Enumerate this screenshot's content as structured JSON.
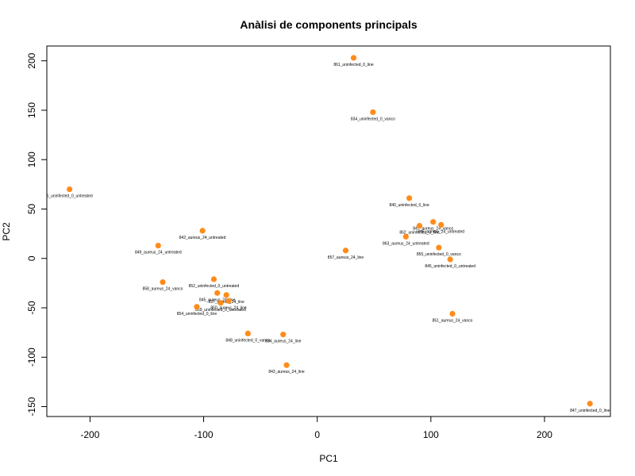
{
  "chart_data": {
    "type": "scatter",
    "title": "Anàlisi de components principals",
    "xlabel": "PC1",
    "ylabel": "PC2",
    "xlim": [
      -238,
      258
    ],
    "ylim": [
      -160,
      215
    ],
    "xticks": [
      -200,
      -100,
      0,
      100,
      200
    ],
    "yticks": [
      -150,
      -100,
      -50,
      0,
      50,
      100,
      150,
      200
    ],
    "point_color": "#ff8c1a",
    "grid": false,
    "legend": "none",
    "points": [
      {
        "label": "861_uninfected_0_line",
        "x": 32,
        "y": 203
      },
      {
        "label": "834_uninfected_0_vanco",
        "x": 49,
        "y": 148
      },
      {
        "label": "6_uninfected_0_untreated",
        "x": -218,
        "y": 70
      },
      {
        "label": "840_uninfected_0_line",
        "x": 81,
        "y": 61
      },
      {
        "label": "847_aureus_24_vanco",
        "x": 102,
        "y": 37
      },
      {
        "label": "862_uninfected_0_line",
        "x": 90,
        "y": 33
      },
      {
        "label": "846_aureus_24_untreated",
        "x": 109,
        "y": 34
      },
      {
        "label": "863_aureus_24_untreated",
        "x": 78,
        "y": 22
      },
      {
        "label": "842_aureus_24_untreated",
        "x": -101,
        "y": 28
      },
      {
        "label": "849_aureus_24_untreated",
        "x": -140,
        "y": 13
      },
      {
        "label": "857_aureus_24_line",
        "x": 25,
        "y": 8
      },
      {
        "label": "855_uninfected_0_vanco",
        "x": 107,
        "y": 11
      },
      {
        "label": "845_uninfected_0_untreated",
        "x": 117,
        "y": -1
      },
      {
        "label": "852_uninfected_0_untreated",
        "x": -91,
        "y": -21
      },
      {
        "label": "858_aureus_24_vanco",
        "x": -136,
        "y": -24
      },
      {
        "label": "845_aureus_24_line",
        "x": -88,
        "y": -35
      },
      {
        "label": "837_aureus_24_line",
        "x": -80,
        "y": -37
      },
      {
        "label": "850_aureus_24_line",
        "x": -78,
        "y": -43
      },
      {
        "label": "859_uninfected_0_untreated",
        "x": -85,
        "y": -45
      },
      {
        "label": "854_uninfected_0_line",
        "x": -106,
        "y": -49
      },
      {
        "label": "851_aureus_24_vanco",
        "x": 119,
        "y": -56
      },
      {
        "label": "848_uninfected_0_vanco",
        "x": -61,
        "y": -76
      },
      {
        "label": "834_aureus_24_line",
        "x": -30,
        "y": -77
      },
      {
        "label": "843_aureus_24_line",
        "x": -27,
        "y": -108
      },
      {
        "label": "847_uninfected_0_line",
        "x": 240,
        "y": -147
      }
    ]
  }
}
